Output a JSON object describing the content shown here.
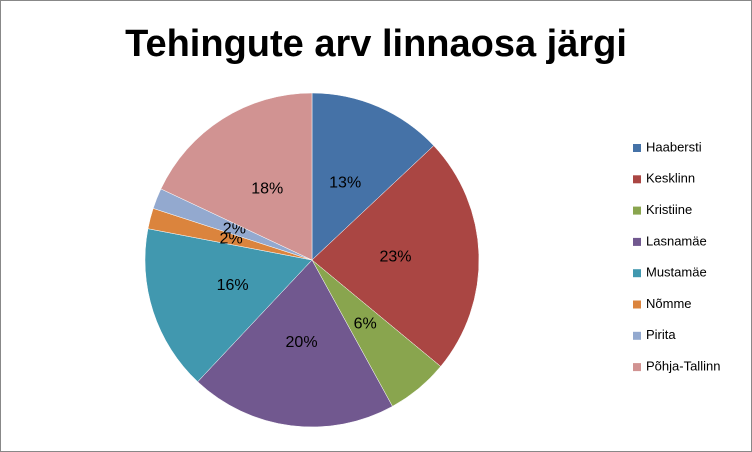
{
  "chart_data": {
    "type": "pie",
    "title": "Tehingute arv linnaosa järgi",
    "categories": [
      "Haabersti",
      "Kesklinn",
      "Kristiine",
      "Lasnamäe",
      "Mustamäe",
      "Nõmme",
      "Pirita",
      "Põhja-Tallinn"
    ],
    "values": [
      13,
      23,
      6,
      20,
      16,
      2,
      2,
      18
    ],
    "value_labels": [
      "13%",
      "23%",
      "6%",
      "20%",
      "16%",
      "2%",
      "2%",
      "18%"
    ],
    "colors": [
      "#4572a7",
      "#aa4643",
      "#89a54e",
      "#71588f",
      "#4198af",
      "#db843d",
      "#93a9cf",
      "#d19392"
    ],
    "legend": "right"
  }
}
